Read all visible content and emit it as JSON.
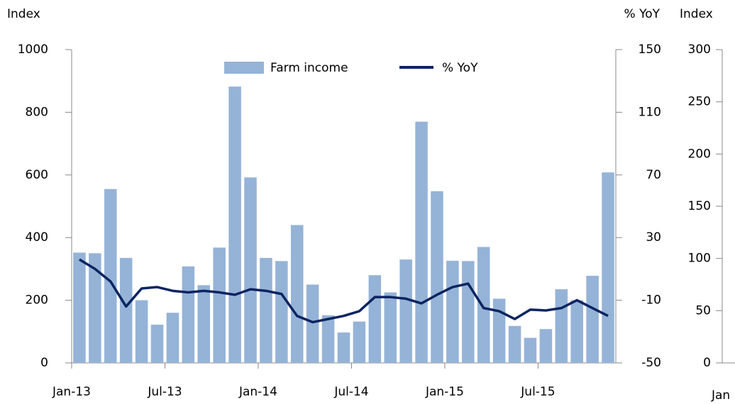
{
  "chart_data": [
    {
      "type": "bar",
      "y_label": "Index",
      "y2_label": "% YoY",
      "categories": [
        "Jan-13",
        null,
        null,
        null,
        null,
        null,
        "Jul-13",
        null,
        null,
        null,
        null,
        null,
        "Jan-14",
        null,
        null,
        null,
        null,
        null,
        "Jul-14",
        null,
        null,
        null,
        null,
        null,
        "Jan-15",
        null,
        null,
        null,
        null,
        null,
        "Jul-15",
        null,
        null,
        null,
        null
      ],
      "series": [
        {
          "name": "Farm income",
          "type": "bar",
          "color": "#95b3d7",
          "values": [
            352,
            350,
            555,
            335,
            200,
            122,
            160,
            308,
            248,
            368,
            882,
            592,
            335,
            325,
            440,
            250,
            152,
            97,
            132,
            280,
            225,
            330,
            770,
            548,
            326,
            325,
            370,
            205,
            118,
            80,
            108,
            235,
            200,
            278,
            608
          ]
        },
        {
          "name": "% YoY",
          "type": "line",
          "axis": "y2",
          "color": "#0c2461",
          "values": [
            16,
            10,
            2,
            -14,
            -2.5,
            -1.6,
            -4,
            -5,
            -4,
            -5,
            -6.5,
            -3,
            -4,
            -6,
            -20,
            -24,
            -22,
            -20,
            -17,
            -8,
            -8,
            -9,
            -12,
            -6.5,
            -1.6,
            0.6,
            -15,
            -17,
            -22,
            -16,
            -16.5,
            -15,
            -10,
            -15,
            -20
          ]
        }
      ],
      "ylim": [
        0,
        1000
      ],
      "yticks": [
        0,
        200,
        400,
        600,
        800,
        1000
      ],
      "y2lim": [
        -50,
        150
      ],
      "y2ticks": [
        -50,
        -10,
        30,
        70,
        110,
        150
      ],
      "legend": "top"
    },
    {
      "type": "bar",
      "y_label": "Index",
      "categories": [
        "Jan"
      ],
      "ylim": [
        0,
        300
      ],
      "yticks": [
        0,
        50,
        100,
        150,
        200,
        250,
        300
      ]
    }
  ]
}
